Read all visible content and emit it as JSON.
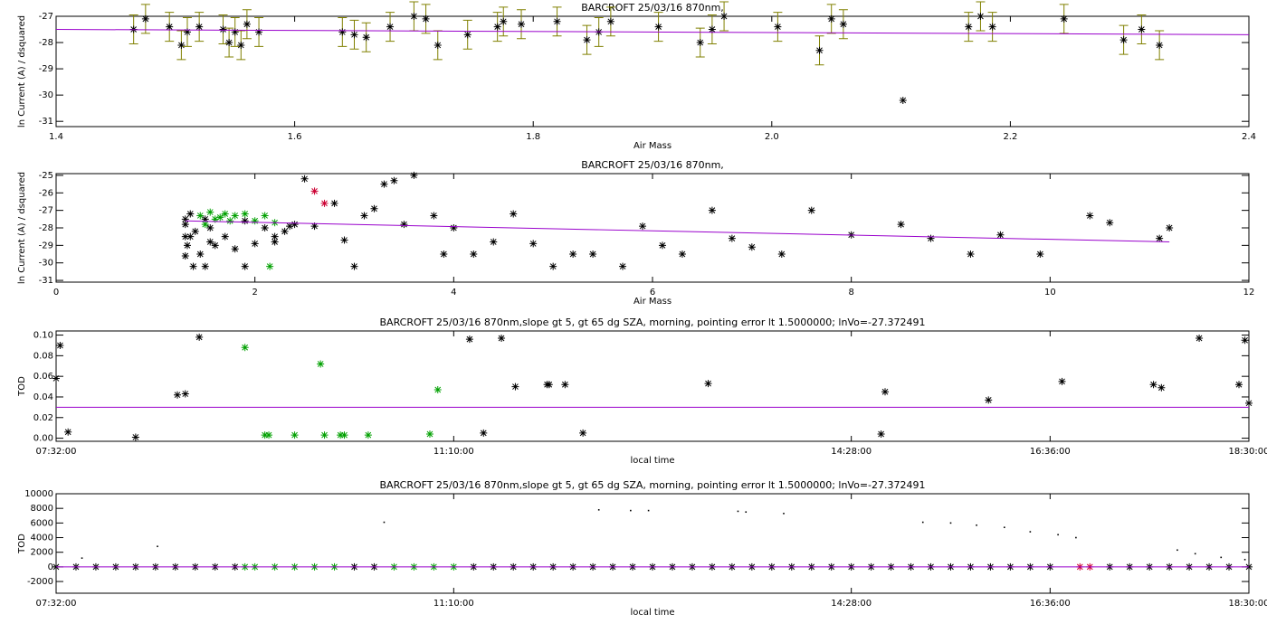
{
  "chart_data": [
    {
      "type": "scatter",
      "title": "BARCROFT 25/03/16 870nm,",
      "xlabel": "Air Mass",
      "ylabel": "ln Current (A) / dsquared",
      "xlim": [
        1.4,
        2.4
      ],
      "xticks": [
        1.4,
        1.6,
        1.8,
        {
          "value": 2,
          "label": "2.0"
        },
        2.2,
        2.4
      ],
      "ylim": [
        -31.2,
        -27
      ],
      "yticks": [
        -27,
        -28,
        -29,
        -30,
        -31
      ],
      "series": [
        {
          "color": "#808000",
          "errorcolor": "#808000",
          "color_marker": "#000000",
          "marker": "star",
          "x": [
            1.465,
            1.475,
            1.495,
            1.505,
            1.51,
            1.52,
            1.54,
            1.545,
            1.55,
            1.555,
            1.56,
            1.57,
            1.64,
            1.65,
            1.66,
            1.68,
            1.7,
            1.71,
            1.72,
            1.745,
            1.77,
            1.775,
            1.79,
            1.82,
            1.845,
            1.855,
            1.865,
            1.905,
            1.94,
            1.95,
            1.96,
            2.005,
            2.04,
            2.05,
            2.06,
            2.11,
            2.165,
            2.175,
            2.185,
            2.245,
            2.295,
            2.31,
            2.325
          ],
          "values": [
            -27.5,
            -27.1,
            -27.4,
            -28.1,
            -27.6,
            -27.4,
            -27.5,
            -28.0,
            -27.6,
            -28.1,
            -27.3,
            -27.6,
            -27.6,
            -27.7,
            -27.8,
            -27.4,
            -27.0,
            -27.1,
            -28.1,
            -27.7,
            -27.4,
            -27.2,
            -27.3,
            -27.2,
            -27.9,
            -27.6,
            -27.2,
            -27.4,
            -28.0,
            -27.5,
            -27.0,
            -27.4,
            -28.3,
            -27.1,
            -27.3,
            -30.2,
            -27.4,
            -27.0,
            -27.4,
            -27.1,
            -27.9,
            -27.5,
            -28.1
          ],
          "errors": [
            0.55,
            0.55,
            0.55,
            0.55,
            0.55,
            0.55,
            0.55,
            0.55,
            0.55,
            0.55,
            0.55,
            0.55,
            0.55,
            0.55,
            0.55,
            0.55,
            0.55,
            0.55,
            0.55,
            0.55,
            0.55,
            0.55,
            0.55,
            0.55,
            0.55,
            0.55,
            0.55,
            0.55,
            0.55,
            0.55,
            0.55,
            0.55,
            0.55,
            0.55,
            0.55,
            null,
            0.55,
            0.55,
            0.55,
            0.55,
            0.55,
            0.55,
            0.55
          ]
        },
        {
          "color": "#9900cc",
          "marker": "line",
          "x": [
            1.4,
            2.4
          ],
          "values": [
            -27.5,
            -27.7
          ]
        }
      ]
    },
    {
      "type": "scatter",
      "title": "BARCROFT 25/03/16 870nm,",
      "xlabel": "Air Mass",
      "ylabel": "ln Current (A) / dsquared",
      "xlim": [
        0,
        12
      ],
      "xticks": [
        0,
        2,
        4,
        6,
        8,
        10,
        12
      ],
      "ylim": [
        -31.1,
        -24.9
      ],
      "yticks": [
        -25,
        -26,
        -27,
        -28,
        -29,
        -30,
        -31
      ],
      "series": [
        {
          "color": "#000000",
          "marker": "star",
          "x": [
            1.3,
            1.3,
            1.32,
            1.35,
            1.38,
            1.4,
            1.45,
            1.5,
            1.55,
            1.6,
            1.7,
            1.8,
            1.9,
            2.0,
            2.1,
            2.2,
            2.3,
            2.4,
            2.5,
            2.6,
            2.8,
            2.9,
            3.0,
            3.1,
            3.2,
            3.3,
            3.4,
            3.5,
            3.6,
            3.8,
            3.9,
            4.0,
            4.2,
            4.4,
            4.6,
            4.8,
            5.0,
            5.2,
            5.4,
            5.7,
            5.9,
            6.1,
            6.3,
            6.6,
            6.8,
            7.0,
            7.3,
            7.6,
            8.0,
            8.5,
            8.8,
            9.2,
            9.5,
            9.9,
            10.4,
            10.6,
            11.1,
            11.2,
            1.3,
            1.3,
            1.35,
            1.5,
            1.55,
            1.9,
            2.2,
            2.35
          ],
          "values": [
            -27.5,
            -28.5,
            -29.0,
            -27.2,
            -30.2,
            -28.2,
            -29.5,
            -30.2,
            -28.8,
            -29.0,
            -28.5,
            -29.2,
            -30.2,
            -28.9,
            -28.0,
            -28.5,
            -28.2,
            -27.8,
            -25.2,
            -27.9,
            -26.6,
            -28.7,
            -30.2,
            -27.3,
            -26.9,
            -25.5,
            -25.3,
            -27.8,
            -25.0,
            -27.3,
            -29.5,
            -28.0,
            -29.5,
            -28.8,
            -27.2,
            -28.9,
            -30.2,
            -29.5,
            -29.5,
            -30.2,
            -27.9,
            -29.0,
            -29.5,
            -27.0,
            -28.6,
            -29.1,
            -29.5,
            -27.0,
            -28.4,
            -27.8,
            -28.6,
            -29.5,
            -28.4,
            -29.5,
            -27.3,
            -27.7,
            -28.6,
            -28.0,
            -27.8,
            -29.6,
            -28.5,
            -27.5,
            -28.0,
            -27.6,
            -28.8,
            -27.9
          ]
        },
        {
          "color": "#00a000",
          "marker": "star",
          "x": [
            1.45,
            1.5,
            1.55,
            1.6,
            1.7,
            1.8,
            1.9,
            2.0,
            2.1,
            2.2,
            1.65,
            1.75,
            2.15
          ],
          "values": [
            -27.3,
            -27.8,
            -27.1,
            -27.5,
            -27.2,
            -27.3,
            -27.2,
            -27.6,
            -27.3,
            -27.7,
            -27.4,
            -27.6,
            -30.2
          ]
        },
        {
          "color": "#cc0033",
          "marker": "star",
          "x": [
            2.6,
            2.7
          ],
          "values": [
            -25.9,
            -26.6
          ]
        },
        {
          "color": "#9900cc",
          "marker": "line",
          "x": [
            1.3,
            11.2
          ],
          "values": [
            -27.6,
            -28.8
          ]
        }
      ]
    },
    {
      "type": "scatter",
      "title": "BARCROFT 25/03/16 870nm,slope gt 5, gt 65 dg SZA, morning, pointing error lt 1.5000000; lnVo=-27.372491",
      "xlabel": "local time",
      "ylabel": "TOD",
      "xlim": [
        0,
        60
      ],
      "xticks": [
        {
          "value": 0,
          "label": "07:32:00"
        },
        {
          "value": 20,
          "label": "11:10:00"
        },
        {
          "value": 40,
          "label": "14:28:00"
        },
        {
          "value": 50,
          "label": "16:36:00"
        },
        {
          "value": 60,
          "label": "18:30:00"
        }
      ],
      "ylim": [
        -0.003,
        0.104
      ],
      "yticks": [
        {
          "value": 0,
          "label": "0.00"
        },
        {
          "value": 0.02,
          "label": "0.02"
        },
        {
          "value": 0.04,
          "label": "0.04"
        },
        {
          "value": 0.06,
          "label": "0.06"
        },
        {
          "value": 0.08,
          "label": "0.08"
        },
        {
          "value": 0.1,
          "label": "0.10"
        }
      ],
      "series": [
        {
          "color": "#000000",
          "marker": "star",
          "x": [
            0,
            0.2,
            0.6,
            4,
            6.1,
            6.5,
            7.2,
            20.8,
            21.5,
            22.4,
            23.1,
            24.7,
            24.8,
            25.6,
            26.5,
            32.8,
            41.5,
            41.7,
            46.9,
            50.6,
            55.2,
            55.6,
            57.5,
            59.5,
            59.8,
            60
          ],
          "values": [
            0.058,
            0.09,
            0.006,
            0.001,
            0.042,
            0.043,
            0.098,
            0.096,
            0.005,
            0.097,
            0.05,
            0.052,
            0.052,
            0.052,
            0.005,
            0.053,
            0.004,
            0.045,
            0.037,
            0.055,
            0.052,
            0.049,
            0.097,
            0.052,
            0.095,
            0.034
          ]
        },
        {
          "color": "#00a000",
          "marker": "star",
          "x": [
            9.5,
            10.5,
            10.7,
            12.0,
            13.3,
            13.5,
            14.3,
            14.5,
            15.7,
            18.8,
            19.2
          ],
          "values": [
            0.088,
            0.003,
            0.003,
            0.003,
            0.072,
            0.003,
            0.003,
            0.003,
            0.003,
            0.004,
            0.047
          ]
        },
        {
          "color": "#9900cc",
          "marker": "line",
          "x": [
            0,
            60
          ],
          "values": [
            0.03,
            0.03
          ]
        }
      ]
    },
    {
      "type": "scatter",
      "title": "BARCROFT 25/03/16 870nm,slope gt 5, gt 65 dg SZA, morning, pointing error lt 1.5000000; lnVo=-27.372491",
      "xlabel": "local time",
      "ylabel": "TOD",
      "xlim": [
        0,
        60
      ],
      "xticks": [
        {
          "value": 0,
          "label": "07:32:00"
        },
        {
          "value": 20,
          "label": "11:10:00"
        },
        {
          "value": 40,
          "label": "14:28:00"
        },
        {
          "value": 50,
          "label": "16:36:00"
        },
        {
          "value": 60,
          "label": "18:30:00"
        }
      ],
      "ylim": [
        -3600,
        10000
      ],
      "yticks": [
        -2000,
        0,
        2000,
        4000,
        6000,
        8000,
        10000
      ],
      "series": [
        {
          "color": "#000000",
          "marker": "star",
          "x": [
            0,
            1,
            2,
            3,
            4,
            5,
            6,
            7,
            8,
            9,
            15,
            16,
            21,
            22,
            23,
            24,
            25,
            26,
            27,
            28,
            29,
            30,
            31,
            32,
            33,
            34,
            35,
            36,
            37,
            38,
            39,
            40,
            41,
            42,
            43,
            44,
            45,
            46,
            47,
            48,
            49,
            50,
            53,
            54,
            55,
            56,
            57,
            58,
            59,
            60
          ],
          "values": [
            0,
            0,
            0,
            0,
            0,
            0,
            0,
            0,
            0,
            0,
            0,
            0,
            0,
            0,
            0,
            0,
            0,
            0,
            0,
            0,
            0,
            0,
            0,
            0,
            0,
            0,
            0,
            0,
            0,
            0,
            0,
            0,
            0,
            0,
            0,
            0,
            0,
            0,
            0,
            0,
            0,
            0,
            0,
            0,
            0,
            0,
            0,
            0,
            0,
            0
          ]
        },
        {
          "color": "#00a000",
          "marker": "star",
          "x": [
            9.5,
            10,
            11,
            12,
            13,
            14,
            17,
            18,
            19,
            20
          ],
          "values": [
            0,
            0,
            0,
            0,
            0,
            0,
            0,
            0,
            0,
            0
          ]
        },
        {
          "color": "#cc0033",
          "marker": "star",
          "x": [
            51.5,
            52
          ],
          "values": [
            0,
            0
          ]
        },
        {
          "color": "#000000",
          "marker": "dot",
          "x": [
            1.3,
            5.1,
            16.5,
            27.3,
            28.9,
            29.8,
            34.3,
            34.7,
            36.6,
            43.6,
            45,
            46.3,
            47.7,
            49,
            50.4,
            51.3,
            56.4,
            57.3,
            58.6,
            59.8
          ],
          "values": [
            1200,
            2800,
            6100,
            7800,
            7700,
            7700,
            7600,
            7500,
            7300,
            6100,
            6000,
            5700,
            5400,
            4800,
            4400,
            4000,
            2300,
            1800,
            1300,
            1000
          ]
        },
        {
          "color": "#9900cc",
          "marker": "line",
          "x": [
            0,
            60
          ],
          "values": [
            0,
            0
          ]
        }
      ]
    }
  ]
}
